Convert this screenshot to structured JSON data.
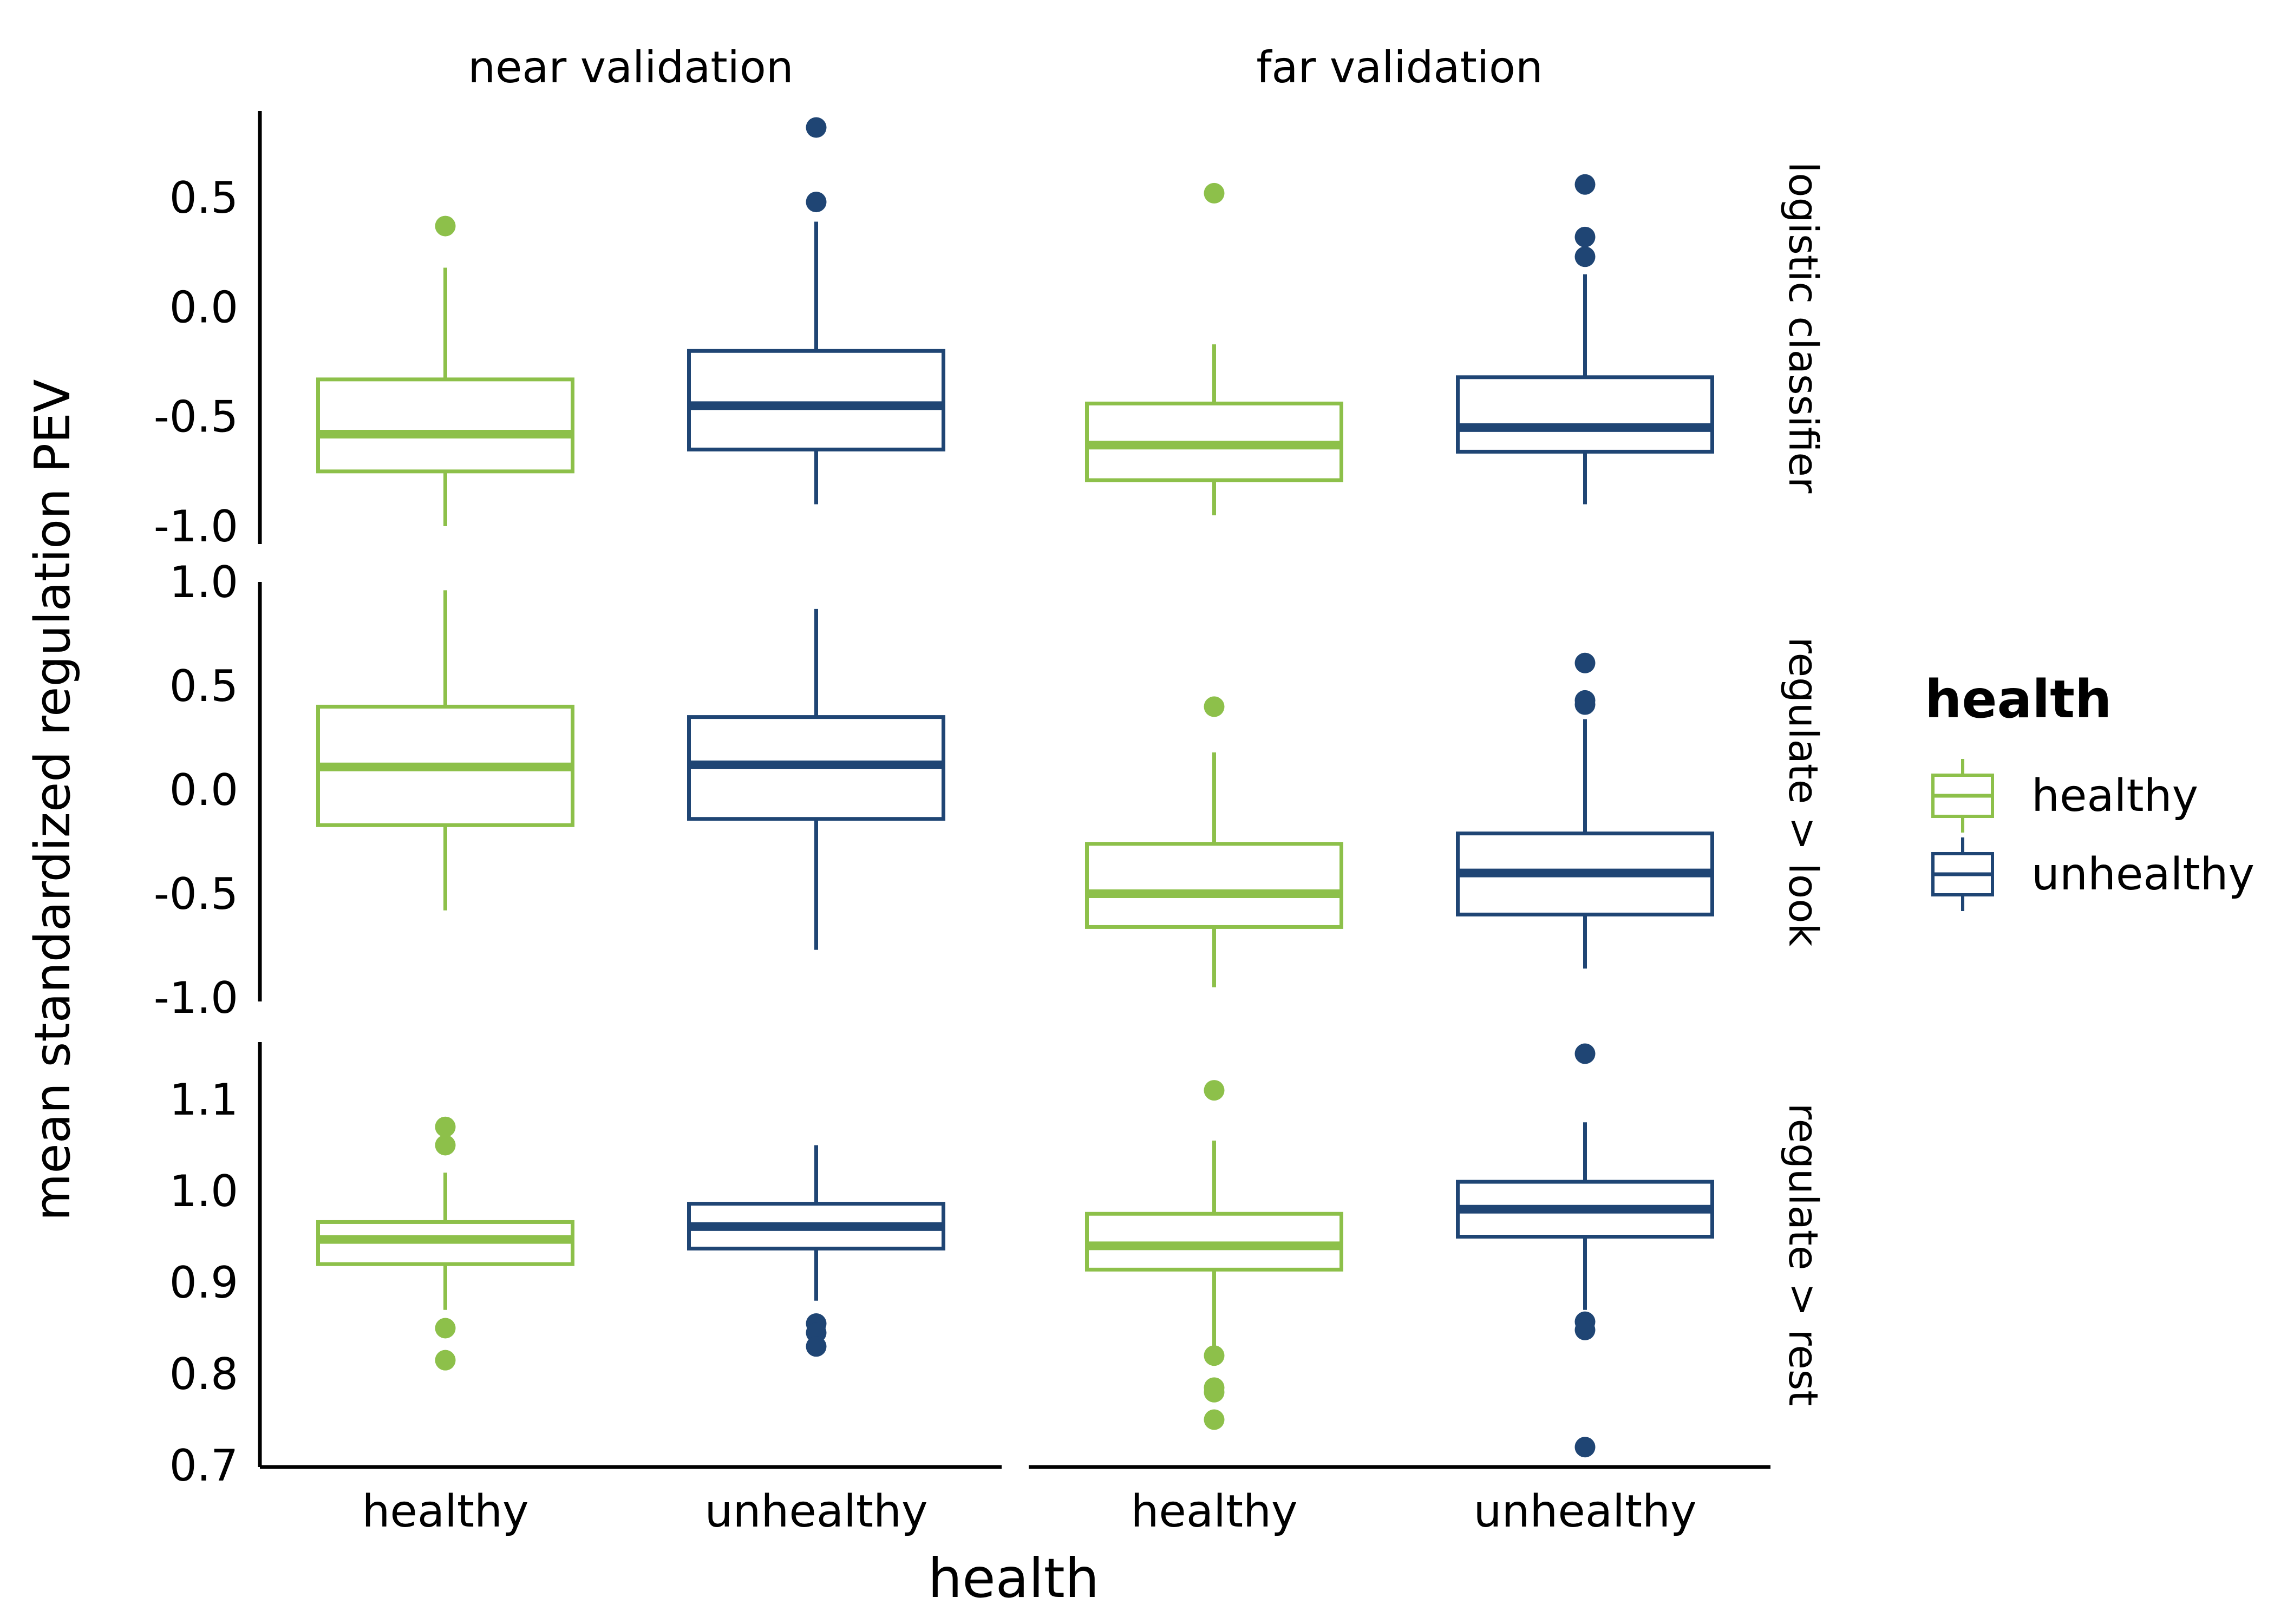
{
  "chart_data": {
    "type": "boxplot",
    "xlabel": "health",
    "ylabel": "mean standardized regulation PEV",
    "columns": [
      "near validation",
      "far validation"
    ],
    "rows": [
      "logistic classifier",
      "regulate > look",
      "regulate > rest"
    ],
    "categories": [
      "healthy",
      "unhealthy"
    ],
    "colors": {
      "healthy": "#8dc04a",
      "unhealthy": "#1f4574"
    },
    "legend": {
      "title": "health",
      "entries": [
        "healthy",
        "unhealthy"
      ],
      "position": "right"
    },
    "y_axes": [
      {
        "row": "logistic classifier",
        "ylim": [
          -1.0,
          0.85
        ],
        "ticks": [
          0.5,
          0.0,
          -0.5,
          -1.0
        ],
        "tick_labels": [
          "0.5",
          "0.0",
          "-0.5",
          "-1.0"
        ]
      },
      {
        "row": "regulate > look",
        "ylim": [
          -1.0,
          1.05
        ],
        "ticks": [
          1.0,
          0.5,
          0.0,
          -0.5,
          -1.0
        ],
        "tick_labels": [
          "1.0",
          "0.5",
          "0.0",
          "-0.5",
          "-1.0"
        ]
      },
      {
        "row": "regulate > rest",
        "ylim": [
          0.7,
          1.17
        ],
        "ticks": [
          1.1,
          1.0,
          0.9,
          0.8,
          0.7
        ],
        "tick_labels": [
          "1.1",
          "1.0",
          "0.9",
          "0.8",
          "0.7"
        ]
      }
    ],
    "boxes": [
      {
        "row": "logistic classifier",
        "column": "near validation",
        "group": "healthy",
        "whisker_low": -1.0,
        "q1": -0.75,
        "median": -0.58,
        "q3": -0.33,
        "whisker_high": 0.18,
        "outliers": [
          0.37
        ]
      },
      {
        "row": "logistic classifier",
        "column": "near validation",
        "group": "unhealthy",
        "whisker_low": -0.9,
        "q1": -0.65,
        "median": -0.45,
        "q3": -0.2,
        "whisker_high": 0.39,
        "outliers": [
          0.48,
          0.82
        ]
      },
      {
        "row": "logistic classifier",
        "column": "far validation",
        "group": "healthy",
        "whisker_low": -0.95,
        "q1": -0.79,
        "median": -0.63,
        "q3": -0.44,
        "whisker_high": -0.17,
        "outliers": [
          0.52
        ]
      },
      {
        "row": "logistic classifier",
        "column": "far validation",
        "group": "unhealthy",
        "whisker_low": -0.9,
        "q1": -0.66,
        "median": -0.55,
        "q3": -0.32,
        "whisker_high": 0.15,
        "outliers": [
          0.23,
          0.32,
          0.56
        ]
      },
      {
        "row": "regulate > look",
        "column": "near validation",
        "group": "healthy",
        "whisker_low": -0.58,
        "q1": -0.17,
        "median": 0.11,
        "q3": 0.4,
        "whisker_high": 0.96,
        "outliers": []
      },
      {
        "row": "regulate > look",
        "column": "near validation",
        "group": "unhealthy",
        "whisker_low": -0.77,
        "q1": -0.14,
        "median": 0.12,
        "q3": 0.35,
        "whisker_high": 0.87,
        "outliers": []
      },
      {
        "row": "regulate > look",
        "column": "far validation",
        "group": "healthy",
        "whisker_low": -0.95,
        "q1": -0.66,
        "median": -0.5,
        "q3": -0.26,
        "whisker_high": 0.18,
        "outliers": [
          0.4
        ]
      },
      {
        "row": "regulate > look",
        "column": "far validation",
        "group": "unhealthy",
        "whisker_low": -0.86,
        "q1": -0.6,
        "median": -0.4,
        "q3": -0.21,
        "whisker_high": 0.34,
        "outliers": [
          0.41,
          0.43,
          0.61
        ]
      },
      {
        "row": "regulate > rest",
        "column": "near validation",
        "group": "healthy",
        "whisker_low": 0.87,
        "q1": 0.92,
        "median": 0.947,
        "q3": 0.966,
        "whisker_high": 1.02,
        "outliers": [
          0.85,
          0.815,
          1.05,
          1.07
        ]
      },
      {
        "row": "regulate > rest",
        "column": "near validation",
        "group": "unhealthy",
        "whisker_low": 0.88,
        "q1": 0.937,
        "median": 0.961,
        "q3": 0.986,
        "whisker_high": 1.05,
        "outliers": [
          0.855,
          0.845,
          0.83
        ]
      },
      {
        "row": "regulate > rest",
        "column": "far validation",
        "group": "healthy",
        "whisker_low": 0.83,
        "q1": 0.914,
        "median": 0.94,
        "q3": 0.975,
        "whisker_high": 1.055,
        "outliers": [
          0.82,
          0.785,
          0.78,
          0.75,
          1.11
        ]
      },
      {
        "row": "regulate > rest",
        "column": "far validation",
        "group": "unhealthy",
        "whisker_low": 0.87,
        "q1": 0.95,
        "median": 0.98,
        "q3": 1.01,
        "whisker_high": 1.075,
        "outliers": [
          0.857,
          0.848,
          0.72,
          1.15
        ]
      }
    ]
  }
}
